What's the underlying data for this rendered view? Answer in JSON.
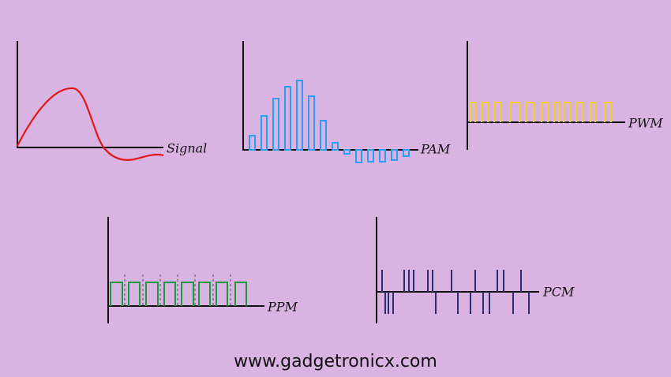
{
  "labels": {
    "signal": "Signal",
    "pam": "PAM",
    "pwm": "PWM",
    "ppm": "PPM",
    "pcm": "PCM"
  },
  "footer": "www.gadgetronicx.com"
}
